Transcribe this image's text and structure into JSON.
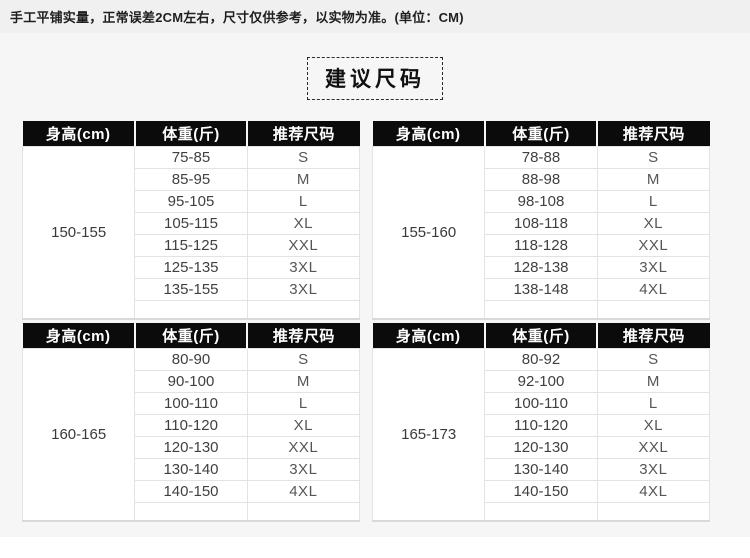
{
  "disclaimer": "手工平铺实量，正常误差2CM左右，尺寸仅供参考，以实物为准。(单位：CM)",
  "title": "建议尺码",
  "columns": [
    "身高(cm)",
    "体重(斤)",
    "推荐尺码"
  ],
  "tables": [
    {
      "height": "150-155",
      "rows": [
        [
          "75-85",
          "S"
        ],
        [
          "85-95",
          "M"
        ],
        [
          "95-105",
          "L"
        ],
        [
          "105-115",
          "XL"
        ],
        [
          "115-125",
          "XXL"
        ],
        [
          "125-135",
          "3XL"
        ],
        [
          "135-155",
          "3XL"
        ]
      ]
    },
    {
      "height": "155-160",
      "rows": [
        [
          "78-88",
          "S"
        ],
        [
          "88-98",
          "M"
        ],
        [
          "98-108",
          "L"
        ],
        [
          "108-118",
          "XL"
        ],
        [
          "118-128",
          "XXL"
        ],
        [
          "128-138",
          "3XL"
        ],
        [
          "138-148",
          "4XL"
        ]
      ]
    },
    {
      "height": "160-165",
      "rows": [
        [
          "80-90",
          "S"
        ],
        [
          "90-100",
          "M"
        ],
        [
          "100-110",
          "L"
        ],
        [
          "110-120",
          "XL"
        ],
        [
          "120-130",
          "XXL"
        ],
        [
          "130-140",
          "3XL"
        ],
        [
          "140-150",
          "4XL"
        ]
      ]
    },
    {
      "height": "165-173",
      "rows": [
        [
          "80-92",
          "S"
        ],
        [
          "92-100",
          "M"
        ],
        [
          "100-110",
          "L"
        ],
        [
          "110-120",
          "XL"
        ],
        [
          "120-130",
          "XXL"
        ],
        [
          "130-140",
          "3XL"
        ],
        [
          "140-150",
          "4XL"
        ]
      ]
    }
  ],
  "colors": {
    "header_bg": "#0b0b0b",
    "header_text": "#ffffff",
    "cell_border": "#e3e3e3",
    "table_bottom_border": "#d9d9d9",
    "page_bg": "#f6f6f6",
    "disclaimer_bar_bg": "#f0f0f0",
    "body_text": "#404040"
  }
}
